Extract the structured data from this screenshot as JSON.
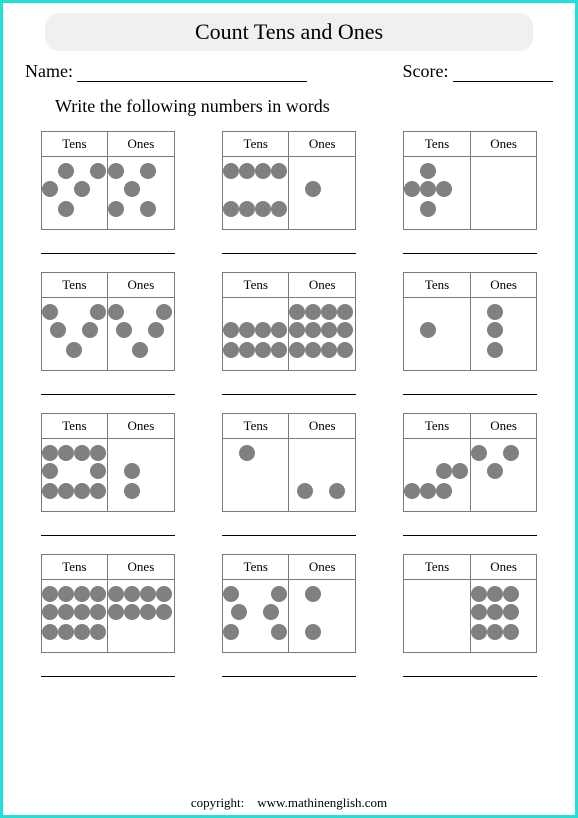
{
  "title": "Count Tens and Ones",
  "name_label": "Name:",
  "score_label": "Score:",
  "instruction": "Write the following numbers in words",
  "headers": {
    "tens": "Tens",
    "ones": "Ones"
  },
  "dot": {
    "color": "#808080",
    "diameter": 16
  },
  "border_color": "#20e0d8",
  "box_border_color": "#7a7a7a",
  "problems": [
    {
      "tens": [
        [
          16,
          6
        ],
        [
          48,
          6
        ],
        [
          0,
          24
        ],
        [
          32,
          24
        ],
        [
          16,
          44
        ]
      ],
      "ones": [
        [
          0,
          6
        ],
        [
          32,
          6
        ],
        [
          16,
          24
        ],
        [
          0,
          44
        ],
        [
          32,
          44
        ]
      ]
    },
    {
      "tens": [
        [
          0,
          6
        ],
        [
          16,
          6
        ],
        [
          32,
          6
        ],
        [
          48,
          6
        ],
        [
          0,
          44
        ],
        [
          16,
          44
        ],
        [
          32,
          44
        ],
        [
          48,
          44
        ]
      ],
      "ones": [
        [
          16,
          24
        ]
      ]
    },
    {
      "tens": [
        [
          16,
          6
        ],
        [
          0,
          24
        ],
        [
          16,
          24
        ],
        [
          32,
          24
        ],
        [
          16,
          44
        ]
      ],
      "ones": []
    },
    {
      "tens": [
        [
          0,
          6
        ],
        [
          48,
          6
        ],
        [
          8,
          24
        ],
        [
          40,
          24
        ],
        [
          24,
          44
        ]
      ],
      "ones": [
        [
          0,
          6
        ],
        [
          48,
          6
        ],
        [
          8,
          24
        ],
        [
          40,
          24
        ],
        [
          24,
          44
        ]
      ]
    },
    {
      "tens": [
        [
          0,
          24
        ],
        [
          16,
          24
        ],
        [
          32,
          24
        ],
        [
          48,
          24
        ],
        [
          0,
          44
        ],
        [
          16,
          44
        ],
        [
          32,
          44
        ],
        [
          48,
          44
        ]
      ],
      "ones": [
        [
          0,
          6
        ],
        [
          16,
          6
        ],
        [
          32,
          6
        ],
        [
          48,
          6
        ],
        [
          0,
          24
        ],
        [
          16,
          24
        ],
        [
          32,
          24
        ],
        [
          48,
          24
        ],
        [
          0,
          44
        ],
        [
          16,
          44
        ],
        [
          32,
          44
        ],
        [
          48,
          44
        ]
      ]
    },
    {
      "tens": [
        [
          16,
          24
        ]
      ],
      "ones": [
        [
          16,
          6
        ],
        [
          16,
          24
        ],
        [
          16,
          44
        ]
      ]
    },
    {
      "tens": [
        [
          0,
          6
        ],
        [
          16,
          6
        ],
        [
          32,
          6
        ],
        [
          48,
          6
        ],
        [
          0,
          24
        ],
        [
          48,
          24
        ],
        [
          0,
          44
        ],
        [
          16,
          44
        ],
        [
          32,
          44
        ],
        [
          48,
          44
        ]
      ],
      "ones": [
        [
          16,
          24
        ],
        [
          16,
          44
        ]
      ]
    },
    {
      "tens": [
        [
          16,
          6
        ]
      ],
      "ones": [
        [
          8,
          44
        ],
        [
          40,
          44
        ]
      ]
    },
    {
      "tens": [
        [
          32,
          24
        ],
        [
          48,
          24
        ],
        [
          0,
          44
        ],
        [
          16,
          44
        ],
        [
          32,
          44
        ]
      ],
      "ones": [
        [
          0,
          6
        ],
        [
          32,
          6
        ],
        [
          16,
          24
        ]
      ]
    },
    {
      "tens": [
        [
          0,
          6
        ],
        [
          16,
          6
        ],
        [
          32,
          6
        ],
        [
          48,
          6
        ],
        [
          0,
          24
        ],
        [
          16,
          24
        ],
        [
          32,
          24
        ],
        [
          48,
          24
        ],
        [
          0,
          44
        ],
        [
          16,
          44
        ],
        [
          32,
          44
        ],
        [
          48,
          44
        ]
      ],
      "ones": [
        [
          0,
          6
        ],
        [
          16,
          6
        ],
        [
          32,
          6
        ],
        [
          48,
          6
        ],
        [
          0,
          24
        ],
        [
          16,
          24
        ],
        [
          32,
          24
        ],
        [
          48,
          24
        ]
      ]
    },
    {
      "tens": [
        [
          0,
          6
        ],
        [
          48,
          6
        ],
        [
          8,
          24
        ],
        [
          40,
          24
        ],
        [
          0,
          44
        ],
        [
          48,
          44
        ]
      ],
      "ones": [
        [
          16,
          6
        ],
        [
          16,
          44
        ]
      ]
    },
    {
      "tens": [],
      "ones": [
        [
          0,
          6
        ],
        [
          16,
          6
        ],
        [
          32,
          6
        ],
        [
          0,
          24
        ],
        [
          16,
          24
        ],
        [
          32,
          24
        ],
        [
          0,
          44
        ],
        [
          16,
          44
        ],
        [
          32,
          44
        ]
      ]
    }
  ],
  "footer": {
    "label": "copyright:",
    "site": "www.mathinenglish.com"
  }
}
